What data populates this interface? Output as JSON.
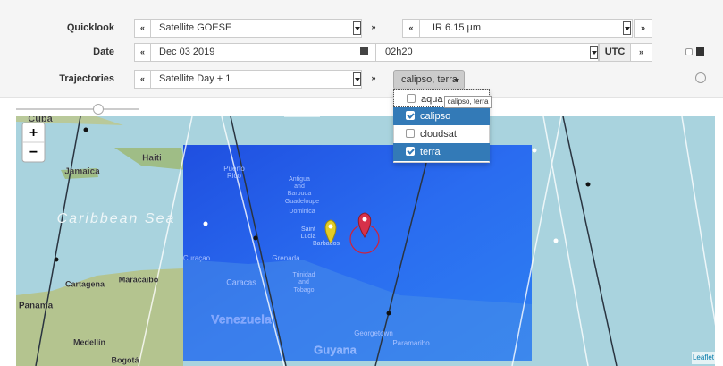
{
  "quicklook": {
    "label": "Quicklook",
    "prev": "«",
    "satellite": "Satellite GOESE",
    "next": "»",
    "channel_prev": "«",
    "channel": "IR 6.15 µm",
    "channel_next": "»"
  },
  "date": {
    "label": "Date",
    "prev": "«",
    "day": "Dec 03 2019",
    "time": "02h20",
    "timezone": "UTC",
    "next": "»"
  },
  "trajectories": {
    "label": "Trajectories",
    "prev": "«",
    "mode": "Satellite Day + 1",
    "next": "»",
    "selected": "calipso, terra",
    "tooltip": "calipso, terra",
    "options": [
      {
        "label": "aqua",
        "checked": false
      },
      {
        "label": "calipso",
        "checked": true
      },
      {
        "label": "cloudsat",
        "checked": false
      },
      {
        "label": "terra",
        "checked": true
      }
    ]
  },
  "map": {
    "zoom_in": "+",
    "zoom_out": "−",
    "attribution": "Leaflet",
    "labels": [
      "Cuba",
      "Haiti",
      "Jamaica",
      "Caribbean Sea",
      "Puerto",
      "Rico",
      "Antigua",
      "and",
      "Barbuda",
      "Guadeloupe",
      "Dominica",
      "Saint",
      "Lucia",
      "Barbados",
      "Curaçao",
      "Grenada",
      "Trinidad",
      "and",
      "Tobago",
      "Caracas",
      "Cartagena",
      "Maracaibo",
      "Panama",
      "Venezuela",
      "Medellín",
      "Bogotá",
      "Georgetown",
      "Paramaribo",
      "Guyana"
    ]
  }
}
